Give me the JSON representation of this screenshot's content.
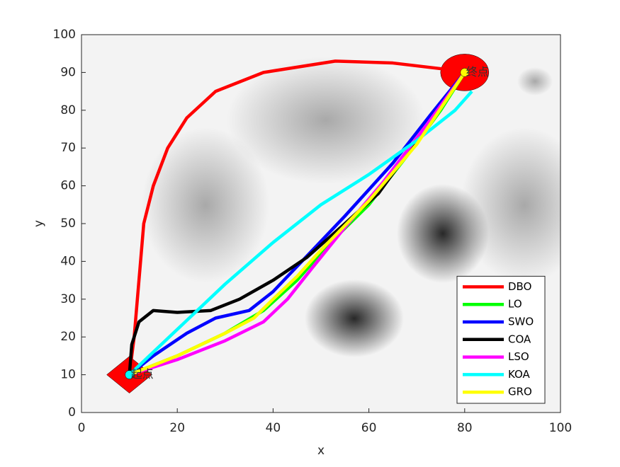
{
  "chart_data": {
    "type": "line",
    "xlabel": "x",
    "ylabel": "y",
    "xlim": [
      0,
      100
    ],
    "ylim": [
      0,
      100
    ],
    "xticks": [
      0,
      20,
      40,
      60,
      80,
      100
    ],
    "yticks": [
      0,
      10,
      20,
      30,
      40,
      50,
      60,
      70,
      80,
      90,
      100
    ],
    "legend": "lower right",
    "start": {
      "label": "起点",
      "x": 10,
      "y": 10
    },
    "goal": {
      "label": "终点",
      "x": 80,
      "y": 90
    },
    "series": [
      {
        "name": "DBO",
        "color": "#ff0000",
        "x": [
          10,
          11,
          12,
          13,
          15,
          18,
          22,
          28,
          38,
          53,
          65,
          75,
          80
        ],
        "values": [
          10,
          20,
          35,
          50,
          60,
          70,
          78,
          85,
          90,
          93,
          92.5,
          91,
          90
        ]
      },
      {
        "name": "LO",
        "color": "#00ff00",
        "x": [
          10,
          20,
          30,
          38,
          45,
          52,
          60,
          68,
          75,
          80
        ],
        "values": [
          10,
          15,
          21,
          27,
          35,
          45,
          55,
          68,
          80,
          90
        ]
      },
      {
        "name": "SWO",
        "color": "#0000ff",
        "x": [
          10,
          15,
          22,
          28,
          35,
          40,
          46,
          55,
          65,
          73,
          80
        ],
        "values": [
          10,
          15,
          21,
          25,
          27,
          32,
          40,
          52,
          66,
          79,
          90
        ]
      },
      {
        "name": "COA",
        "color": "#000000",
        "x": [
          10,
          10.5,
          12,
          15,
          20,
          27,
          33,
          40,
          47,
          55,
          62,
          70,
          76,
          80
        ],
        "values": [
          10,
          18,
          24,
          27,
          26.5,
          27,
          30,
          35,
          41,
          50,
          58,
          72,
          83,
          90
        ]
      },
      {
        "name": "LSO",
        "color": "#ff00ff",
        "x": [
          10,
          20,
          30,
          38,
          43,
          48,
          55,
          63,
          72,
          80
        ],
        "values": [
          10,
          14,
          19,
          24,
          30,
          38,
          49,
          61,
          76,
          90
        ]
      },
      {
        "name": "KOA",
        "color": "#00ffff",
        "x": [
          10,
          20,
          30,
          40,
          50,
          60,
          70,
          78,
          81.5
        ],
        "values": [
          10,
          22,
          34,
          45,
          55,
          63,
          72,
          80,
          85
        ]
      },
      {
        "name": "GRO",
        "color": "#ffff00",
        "x": [
          10,
          20,
          30,
          36,
          40,
          45,
          50,
          60,
          70,
          80
        ],
        "values": [
          10,
          15,
          21,
          25,
          30,
          36,
          43,
          56,
          71,
          90
        ]
      }
    ]
  }
}
